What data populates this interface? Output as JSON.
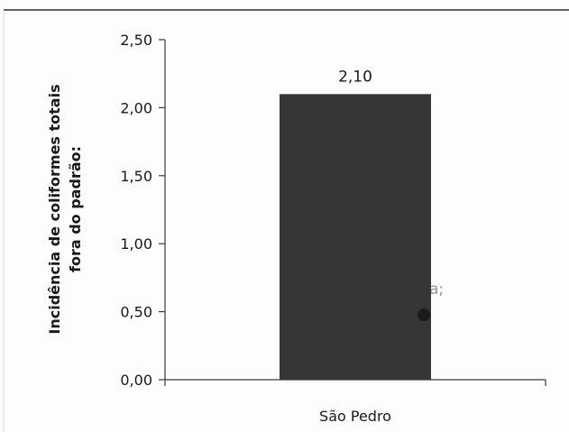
{
  "chart_data": {
    "type": "bar",
    "categories": [
      "São Pedro"
    ],
    "values": [
      2.1
    ],
    "value_labels": [
      "2,10"
    ],
    "ylabel_lines": [
      "Incidência de coliformes totais",
      "fora do padrão:"
    ],
    "xlabel": "",
    "ylim": [
      0,
      2.5
    ],
    "yticks": [
      0,
      0.5,
      1.0,
      1.5,
      2.0,
      2.5
    ],
    "ytick_labels": [
      "0,00",
      "0,50",
      "1,00",
      "1,50",
      "2,00",
      "2,50"
    ],
    "grid": false,
    "legend": "none",
    "bar_color": "#363636",
    "ghost_label": "a;",
    "ghost_dot_color": "#1c1c1c"
  }
}
